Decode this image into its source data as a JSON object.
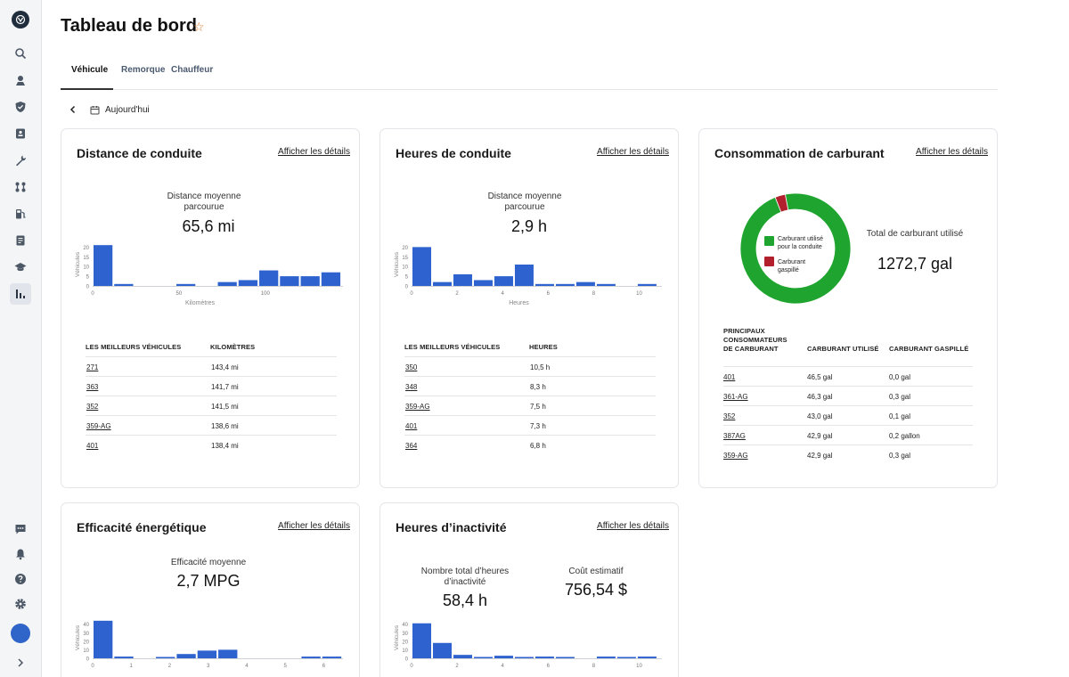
{
  "header": {
    "title": "Tableau de bord"
  },
  "tabs": [
    {
      "label": "Véhicule",
      "active": true
    },
    {
      "label": "Remorque",
      "active": false
    },
    {
      "label": "Chauffeur",
      "active": false
    }
  ],
  "datebar": {
    "label": "Aujourd'hui"
  },
  "sidebar": {
    "icons": [
      "search-icon",
      "map-pin-icon",
      "shield-icon",
      "id-card-icon",
      "wrench-icon",
      "route-icon",
      "fuel-icon",
      "document-icon",
      "graduation-cap-icon",
      "bar-chart-icon"
    ],
    "bottom_icons": [
      "chat-icon",
      "bell-icon",
      "help-icon",
      "gear-icon"
    ]
  },
  "colors": {
    "bar": "#2d62cf",
    "fuel_used": "#1fa52f",
    "fuel_wasted": "#b1202c",
    "accent_star": "#e07a28"
  },
  "cards": {
    "distance": {
      "title": "Distance de conduite",
      "link": "Afficher les détails",
      "stat_label": "Distance moyenne parcourue",
      "stat_value": "65,6 mi",
      "table": {
        "headers": [
          "LES MEILLEURS VÉHICULES",
          "KILOMÈTRES"
        ],
        "rows": [
          [
            "271",
            "143,4 mi"
          ],
          [
            "363",
            "141,7 mi"
          ],
          [
            "352",
            "141,5 mi"
          ],
          [
            "359-AG",
            "138,6 mi"
          ],
          [
            "401",
            "138,4 mi"
          ]
        ]
      }
    },
    "hours": {
      "title": "Heures de conduite",
      "link": "Afficher les détails",
      "stat_label": "Distance moyenne parcourue",
      "stat_value": "2,9 h",
      "table": {
        "headers": [
          "LES MEILLEURS VÉHICULES",
          "HEURES"
        ],
        "rows": [
          [
            "350",
            "10,5 h"
          ],
          [
            "348",
            "8,3 h"
          ],
          [
            "359-AG",
            "7,5 h"
          ],
          [
            "401",
            "7,3 h"
          ],
          [
            "364",
            "6,8 h"
          ]
        ]
      }
    },
    "fuel": {
      "title": "Consommation de carburant",
      "link": "Afficher les détails",
      "total_label": "Total de carburant utilisé",
      "total_value": "1272,7 gal",
      "legend_used": "Carburant utilisé pour la conduite",
      "legend_wasted": "Carburant gaspillé",
      "table": {
        "headers": [
          "PRINCIPAUX CONSOMMATEURS DE CARBURANT",
          "CARBURANT UTILISÉ",
          "CARBURANT GASPILLÉ"
        ],
        "rows": [
          [
            "401",
            "46,5 gal",
            "0,0 gal"
          ],
          [
            "361-AG",
            "46,3 gal",
            "0,3 gal"
          ],
          [
            "352",
            "43,0 gal",
            "0,1 gal"
          ],
          [
            "387AG",
            "42,9 gal",
            "0,2 gallon"
          ],
          [
            "359-AG",
            "42,9 gal",
            "0,3 gal"
          ]
        ]
      }
    },
    "efficiency": {
      "title": "Efficacité énergétique",
      "link": "Afficher les détails",
      "stat_label": "Efficacité moyenne",
      "stat_value": "2,7 MPG"
    },
    "idle": {
      "title": "Heures d’inactivité",
      "link": "Afficher les détails",
      "stat1_label": "Nombre total d’heures d’inactivité",
      "stat1_value": "58,4 h",
      "stat2_label": "Coût estimatif",
      "stat2_value": "756,54 $"
    }
  },
  "chart_data": [
    {
      "id": "distance",
      "type": "bar",
      "ylabel": "Véhicules",
      "xlabel": "Kilomètres",
      "yticks": [
        0,
        5,
        10,
        15,
        20
      ],
      "ylim": [
        0,
        22
      ],
      "xticks": [
        {
          "value": 0,
          "label": "0"
        },
        {
          "value": 50,
          "label": "50"
        },
        {
          "value": 100,
          "label": "100"
        }
      ],
      "xlim": [
        0,
        145
      ],
      "bin_width": 12,
      "values": [
        21,
        1,
        0,
        0,
        1,
        0,
        2,
        3,
        8,
        5,
        5,
        7
      ]
    },
    {
      "id": "hours",
      "type": "bar",
      "ylabel": "Véhicules",
      "xlabel": "Heures",
      "yticks": [
        0,
        5,
        10,
        15,
        20
      ],
      "ylim": [
        0,
        22
      ],
      "xticks": [
        {
          "value": 0,
          "label": "0"
        },
        {
          "value": 2,
          "label": "2"
        },
        {
          "value": 4,
          "label": "4"
        },
        {
          "value": 6,
          "label": "6"
        },
        {
          "value": 8,
          "label": "8"
        },
        {
          "value": 10,
          "label": "10"
        }
      ],
      "xlim": [
        0,
        11
      ],
      "bin_width": 0.9,
      "values": [
        20,
        2,
        6,
        3,
        5,
        11,
        1,
        1,
        2,
        1,
        0,
        1
      ]
    },
    {
      "id": "efficiency",
      "type": "bar",
      "ylabel": "Véhicules",
      "xlabel": "",
      "yticks": [
        0,
        10,
        20,
        30,
        40
      ],
      "ylim": [
        0,
        48
      ],
      "xticks": [
        {
          "value": 0,
          "label": "0"
        },
        {
          "value": 1,
          "label": "1"
        },
        {
          "value": 2,
          "label": "2"
        },
        {
          "value": 3,
          "label": "3"
        },
        {
          "value": 4,
          "label": "4"
        },
        {
          "value": 5,
          "label": "5"
        },
        {
          "value": 6,
          "label": "6"
        }
      ],
      "xlim": [
        0,
        6.5
      ],
      "bin_width": 0.54,
      "values": [
        44,
        2,
        0,
        1,
        5,
        9,
        10,
        0,
        0,
        0,
        2,
        2
      ]
    },
    {
      "id": "idle",
      "type": "bar",
      "ylabel": "Véhicules",
      "xlabel": "",
      "yticks": [
        0,
        10,
        20,
        30,
        40
      ],
      "ylim": [
        0,
        48
      ],
      "xticks": [
        {
          "value": 0,
          "label": "0"
        },
        {
          "value": 2,
          "label": "2"
        },
        {
          "value": 4,
          "label": "4"
        },
        {
          "value": 6,
          "label": "6"
        },
        {
          "value": 8,
          "label": "8"
        },
        {
          "value": 10,
          "label": "10"
        }
      ],
      "xlim": [
        0,
        11
      ],
      "bin_width": 0.9,
      "values": [
        41,
        18,
        4,
        1,
        3,
        1,
        2,
        1,
        0,
        2,
        1,
        2
      ]
    },
    {
      "id": "fuel",
      "type": "pie",
      "categories": [
        "Carburant utilisé pour la conduite",
        "Carburant gaspillé"
      ],
      "values": [
        97,
        3
      ]
    }
  ]
}
